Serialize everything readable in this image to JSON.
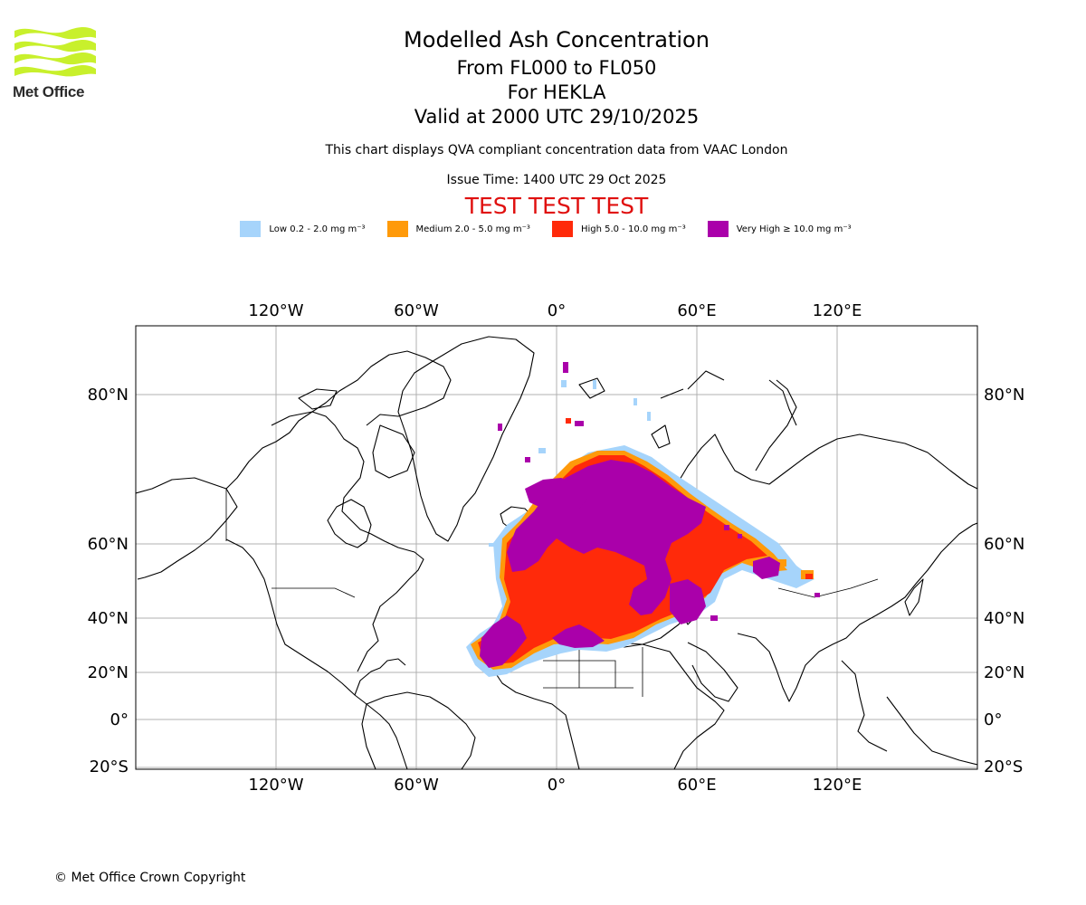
{
  "logo": {
    "text": "Met Office",
    "color": "#c8f02c"
  },
  "header": {
    "title": "Modelled Ash Concentration",
    "level_range": "From FL000 to FL050",
    "volcano": "For HEKLA",
    "valid_time": "Valid at 2000 UTC 29/10/2025",
    "subtitle": "This chart displays QVA compliant concentration data from VAAC London",
    "issue_time": "Issue Time: 1400 UTC 29 Oct 2025",
    "test_banner": "TEST TEST TEST"
  },
  "legend": [
    {
      "label": "Low 0.2 - 2.0 mg m⁻³",
      "color": "#a6d4fb"
    },
    {
      "label": "Medium 2.0 - 5.0 mg m⁻³",
      "color": "#ff9a0a"
    },
    {
      "label": "High 5.0 - 10.0 mg m⁻³",
      "color": "#ff2a0a"
    },
    {
      "label": "Very High ≥ 10.0 mg m⁻³",
      "color": "#aa00aa"
    }
  ],
  "map": {
    "projection": "Mercator",
    "lon_ticks": [
      "120°W",
      "60°W",
      "0°",
      "60°E",
      "120°E"
    ],
    "lat_ticks": [
      "80°N",
      "60°N",
      "40°N",
      "20°N",
      "0°",
      "20°S"
    ]
  },
  "footer": "© Met Office Crown Copyright"
}
